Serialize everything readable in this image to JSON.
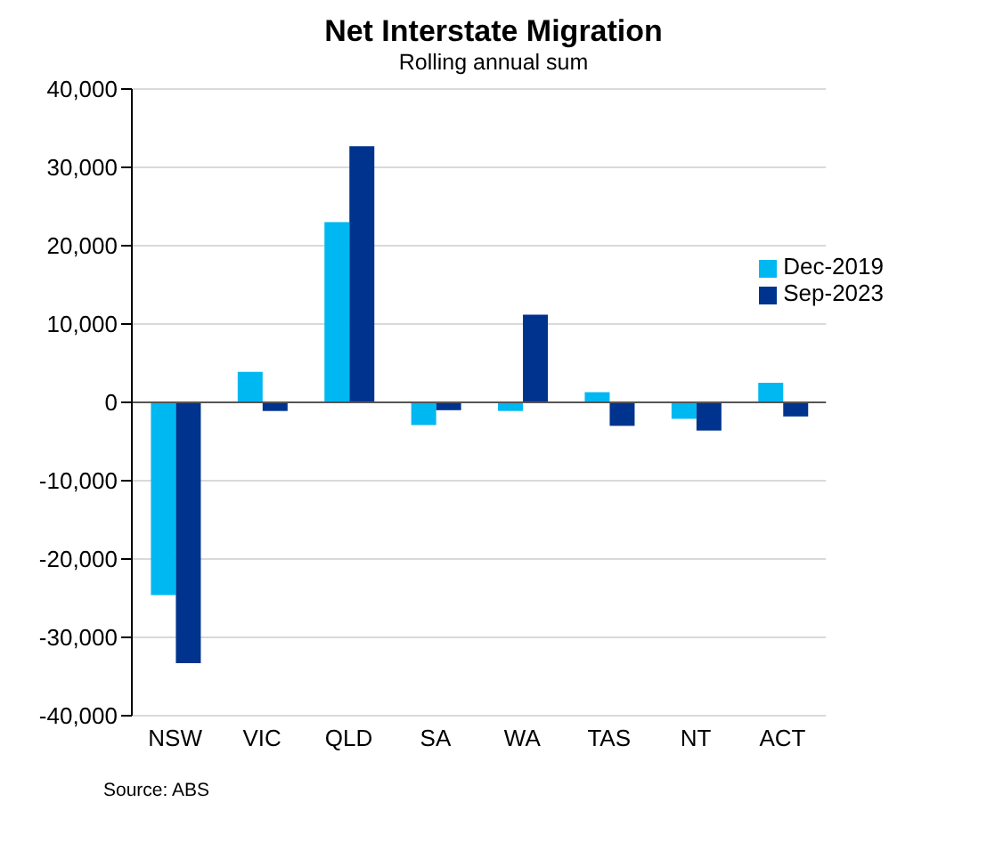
{
  "chart_data": {
    "type": "bar",
    "title": "Net Interstate Migration",
    "subtitle": "Rolling annual sum",
    "categories": [
      "NSW",
      "VIC",
      "QLD",
      "SA",
      "WA",
      "TAS",
      "NT",
      "ACT"
    ],
    "series": [
      {
        "name": "Dec-2019",
        "color": "#00b8f1",
        "values": [
          -24600,
          3900,
          23000,
          -2900,
          -1100,
          1300,
          -2100,
          2500
        ]
      },
      {
        "name": "Sep-2023",
        "color": "#00338d",
        "values": [
          -33300,
          -1100,
          32700,
          -1000,
          11200,
          -3000,
          -3600,
          -1800
        ]
      }
    ],
    "ylim": [
      -40000,
      40000
    ],
    "yticks": [
      {
        "value": -40000,
        "label": "-40,000"
      },
      {
        "value": -30000,
        "label": "-30,000"
      },
      {
        "value": -20000,
        "label": "-20,000"
      },
      {
        "value": -10000,
        "label": "-10,000"
      },
      0,
      {
        "value": 10000,
        "label": "10,000"
      },
      {
        "value": 20000,
        "label": "20,000"
      },
      {
        "value": 30000,
        "label": "30,000"
      },
      {
        "value": 40000,
        "label": "40,000"
      }
    ],
    "grid": "y",
    "legend": "top right",
    "annotations": [
      "Source: ABS"
    ]
  }
}
